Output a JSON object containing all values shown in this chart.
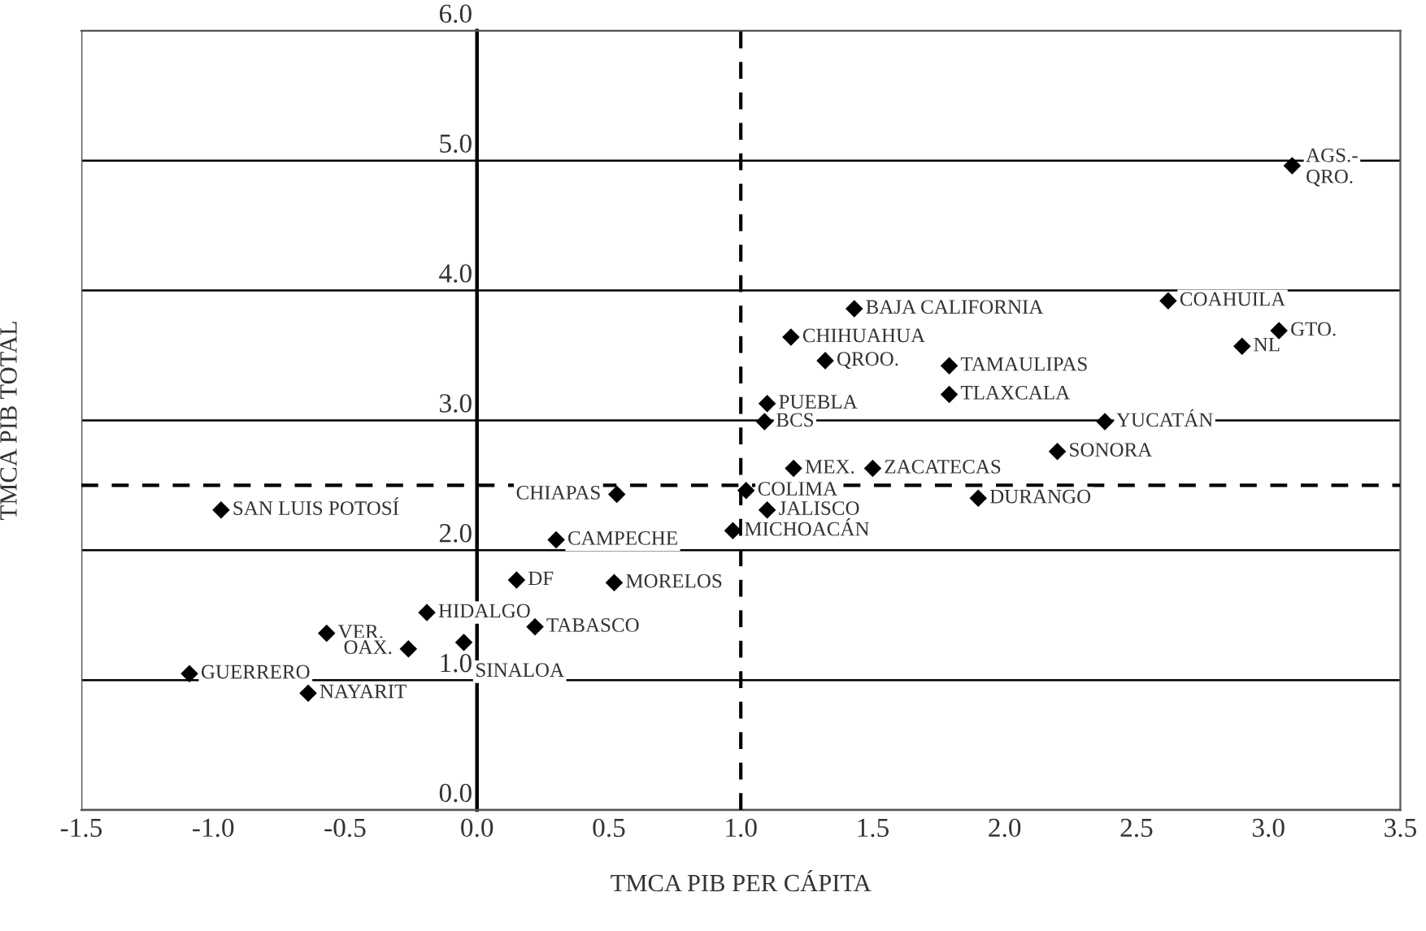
{
  "chart_data": {
    "type": "scatter",
    "xlabel": "TMCA PIB PER CÁPITA",
    "ylabel": "TMCA PIB TOTAL",
    "xlim": [
      -1.5,
      3.5
    ],
    "xticks": [
      {
        "value": -1.5,
        "label": "-1.5"
      },
      {
        "value": -1.0,
        "label": "-1.0"
      },
      {
        "value": -0.5,
        "label": "-0.5"
      },
      {
        "value": 0.0,
        "label": "0.0"
      },
      {
        "value": 0.5,
        "label": "0.5"
      },
      {
        "value": 1.0,
        "label": "1.0"
      },
      {
        "value": 1.5,
        "label": "1.5"
      },
      {
        "value": 2.0,
        "label": "2.0"
      },
      {
        "value": 2.5,
        "label": "2.5"
      },
      {
        "value": 3.0,
        "label": "3.0"
      },
      {
        "value": 3.5,
        "label": "3.5"
      }
    ],
    "ylim": [
      0,
      6
    ],
    "yticks": [
      {
        "value": 0,
        "label": "0.0"
      },
      {
        "value": 1,
        "label": "1.0"
      },
      {
        "value": 2,
        "label": "2.0"
      },
      {
        "value": 3,
        "label": "3.0"
      },
      {
        "value": 4,
        "label": "4.0"
      },
      {
        "value": 5,
        "label": "5.0"
      },
      {
        "value": 6,
        "label": "6.0"
      }
    ],
    "grid": "y",
    "legend": false,
    "marker": "diamond",
    "series": [
      {
        "color": "#000000",
        "x": [
          -0.97,
          0.53,
          0.3,
          0.15,
          0.52,
          -0.19,
          -0.57,
          -0.26,
          -0.05,
          0.22,
          -1.09,
          -0.64,
          1.02,
          1.1,
          0.97,
          1.2,
          1.43,
          2.62,
          3.04,
          2.9,
          1.19,
          1.32,
          1.79,
          1.79,
          1.1,
          1.09,
          2.38,
          2.2,
          1.5,
          1.9,
          3.09
        ],
        "values": [
          2.31,
          2.43,
          2.08,
          1.77,
          1.75,
          1.52,
          1.36,
          1.24,
          1.29,
          1.41,
          1.05,
          0.9,
          2.46,
          2.31,
          2.15,
          2.63,
          3.86,
          3.92,
          3.69,
          3.57,
          3.64,
          3.46,
          3.42,
          3.2,
          3.13,
          2.99,
          2.99,
          2.76,
          2.63,
          2.4,
          4.96
        ]
      }
    ],
    "ref_lines": [
      {
        "axis": "x",
        "value": 1.0,
        "line_style": "dashed",
        "color": "#000000"
      },
      {
        "axis": "y",
        "value": 2.5,
        "line_style": "dashed",
        "color": "#000000"
      }
    ],
    "annotations": [
      {
        "text": "SAN LUIS POTOSÍ",
        "x": -0.97,
        "y": 2.31
      },
      {
        "text": "CHIAPAS",
        "x": 0.53,
        "y": 2.43
      },
      {
        "text": "CAMPECHE",
        "x": 0.3,
        "y": 2.08
      },
      {
        "text": "DF",
        "x": 0.15,
        "y": 1.77
      },
      {
        "text": "MORELOS",
        "x": 0.52,
        "y": 1.75
      },
      {
        "text": "HIDALGO",
        "x": -0.19,
        "y": 1.52
      },
      {
        "text": "VER.",
        "x": -0.57,
        "y": 1.36
      },
      {
        "text": "OAX.",
        "x": -0.26,
        "y": 1.24
      },
      {
        "text": "SINALOA",
        "x": -0.05,
        "y": 1.29
      },
      {
        "text": "TABASCO",
        "x": 0.22,
        "y": 1.41
      },
      {
        "text": "GUERRERO",
        "x": -1.09,
        "y": 1.05
      },
      {
        "text": "NAYARIT",
        "x": -0.64,
        "y": 0.9
      },
      {
        "text": "COLIMA",
        "x": 1.02,
        "y": 2.46
      },
      {
        "text": "JALISCO",
        "x": 1.1,
        "y": 2.31
      },
      {
        "text": "MICHOACÁN",
        "x": 0.97,
        "y": 2.15
      },
      {
        "text": "MEX.",
        "x": 1.2,
        "y": 2.63
      },
      {
        "text": "BAJA CALIFORNIA",
        "x": 1.43,
        "y": 3.86
      },
      {
        "text": "COAHUILA",
        "x": 2.62,
        "y": 3.92
      },
      {
        "text": "GTO.",
        "x": 3.04,
        "y": 3.69
      },
      {
        "text": "NL",
        "x": 2.9,
        "y": 3.57
      },
      {
        "text": "CHIHUAHUA",
        "x": 1.19,
        "y": 3.64
      },
      {
        "text": "QROO.",
        "x": 1.32,
        "y": 3.46
      },
      {
        "text": "TAMAULIPAS",
        "x": 1.79,
        "y": 3.42
      },
      {
        "text": "TLAXCALA",
        "x": 1.79,
        "y": 3.2
      },
      {
        "text": "PUEBLA",
        "x": 1.1,
        "y": 3.13
      },
      {
        "text": "BCS",
        "x": 1.09,
        "y": 2.99
      },
      {
        "text": "YUCATÁN",
        "x": 2.38,
        "y": 2.99
      },
      {
        "text": "SONORA",
        "x": 2.2,
        "y": 2.76
      },
      {
        "text": "ZACATECAS",
        "x": 1.5,
        "y": 2.63
      },
      {
        "text": "DURANGO",
        "x": 1.9,
        "y": 2.4
      },
      {
        "text": "AGS.-\nQRO.",
        "x": 3.09,
        "y": 4.96
      }
    ]
  }
}
